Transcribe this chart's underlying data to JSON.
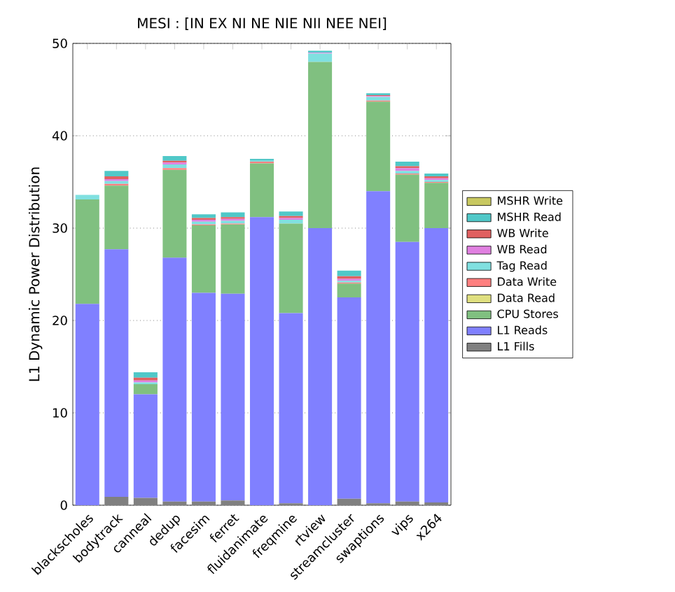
{
  "chart_data": {
    "type": "bar",
    "stacked": true,
    "title": "MESI : [IN EX NI NE NIE NII NEE NEI]",
    "ylabel": "L1 Dynamic Power Distribution",
    "categories": [
      "blackscholes",
      "bodytrack",
      "canneal",
      "dedup",
      "facesim",
      "ferret",
      "fluidanimate",
      "freqmine",
      "rtview",
      "streamcluster",
      "swaptions",
      "vips",
      "x264"
    ],
    "ylim": [
      0,
      50
    ],
    "yticks": [
      0,
      10,
      20,
      30,
      40,
      50
    ],
    "grid": "y",
    "legend": "right",
    "series": [
      {
        "name": "L1 Fills",
        "color": "#808080",
        "values": [
          0,
          0.9,
          0.8,
          0.4,
          0.4,
          0.5,
          0,
          0.2,
          0,
          0.7,
          0.2,
          0.4,
          0.3
        ]
      },
      {
        "name": "L1 Reads",
        "color": "#8080ff",
        "values": [
          21.8,
          26.8,
          11.2,
          26.4,
          22.6,
          22.4,
          31.2,
          20.6,
          30.0,
          21.8,
          33.8,
          28.1,
          29.7
        ]
      },
      {
        "name": "CPU Stores",
        "color": "#80c080",
        "values": [
          11.3,
          6.9,
          1.1,
          9.5,
          7.3,
          7.5,
          5.8,
          9.7,
          18.0,
          1.5,
          9.7,
          7.3,
          4.9
        ]
      },
      {
        "name": "Data Read",
        "color": "#e0e080",
        "values": [
          0,
          0,
          0,
          0,
          0,
          0,
          0,
          0,
          0,
          0,
          0,
          0,
          0
        ]
      },
      {
        "name": "Data Write",
        "color": "#ff8080",
        "values": [
          0,
          0.2,
          0,
          0.2,
          0.1,
          0.1,
          0.2,
          0,
          0,
          0.1,
          0.1,
          0.1,
          0.1
        ]
      },
      {
        "name": "Tag Read",
        "color": "#80e0e0",
        "values": [
          0.5,
          0.3,
          0.2,
          0.4,
          0.3,
          0.3,
          0.1,
          0.4,
          0.9,
          0.2,
          0.4,
          0.3,
          0.2
        ]
      },
      {
        "name": "WB Read",
        "color": "#e080e0",
        "values": [
          0,
          0.2,
          0.2,
          0.2,
          0.2,
          0.2,
          0,
          0.2,
          0.1,
          0.2,
          0.1,
          0.3,
          0.2
        ]
      },
      {
        "name": "WB Write",
        "color": "#e06060",
        "values": [
          0,
          0.3,
          0.3,
          0.2,
          0.2,
          0.2,
          0,
          0.2,
          0,
          0.3,
          0.1,
          0.2,
          0.2
        ]
      },
      {
        "name": "MSHR Read",
        "color": "#50c8c8",
        "values": [
          0,
          0.6,
          0.6,
          0.5,
          0.4,
          0.5,
          0.2,
          0.5,
          0.2,
          0.6,
          0.2,
          0.5,
          0.3
        ]
      },
      {
        "name": "MSHR Write",
        "color": "#c8c860",
        "values": [
          0,
          0,
          0,
          0,
          0,
          0,
          0,
          0,
          0,
          0,
          0,
          0,
          0
        ]
      }
    ]
  }
}
